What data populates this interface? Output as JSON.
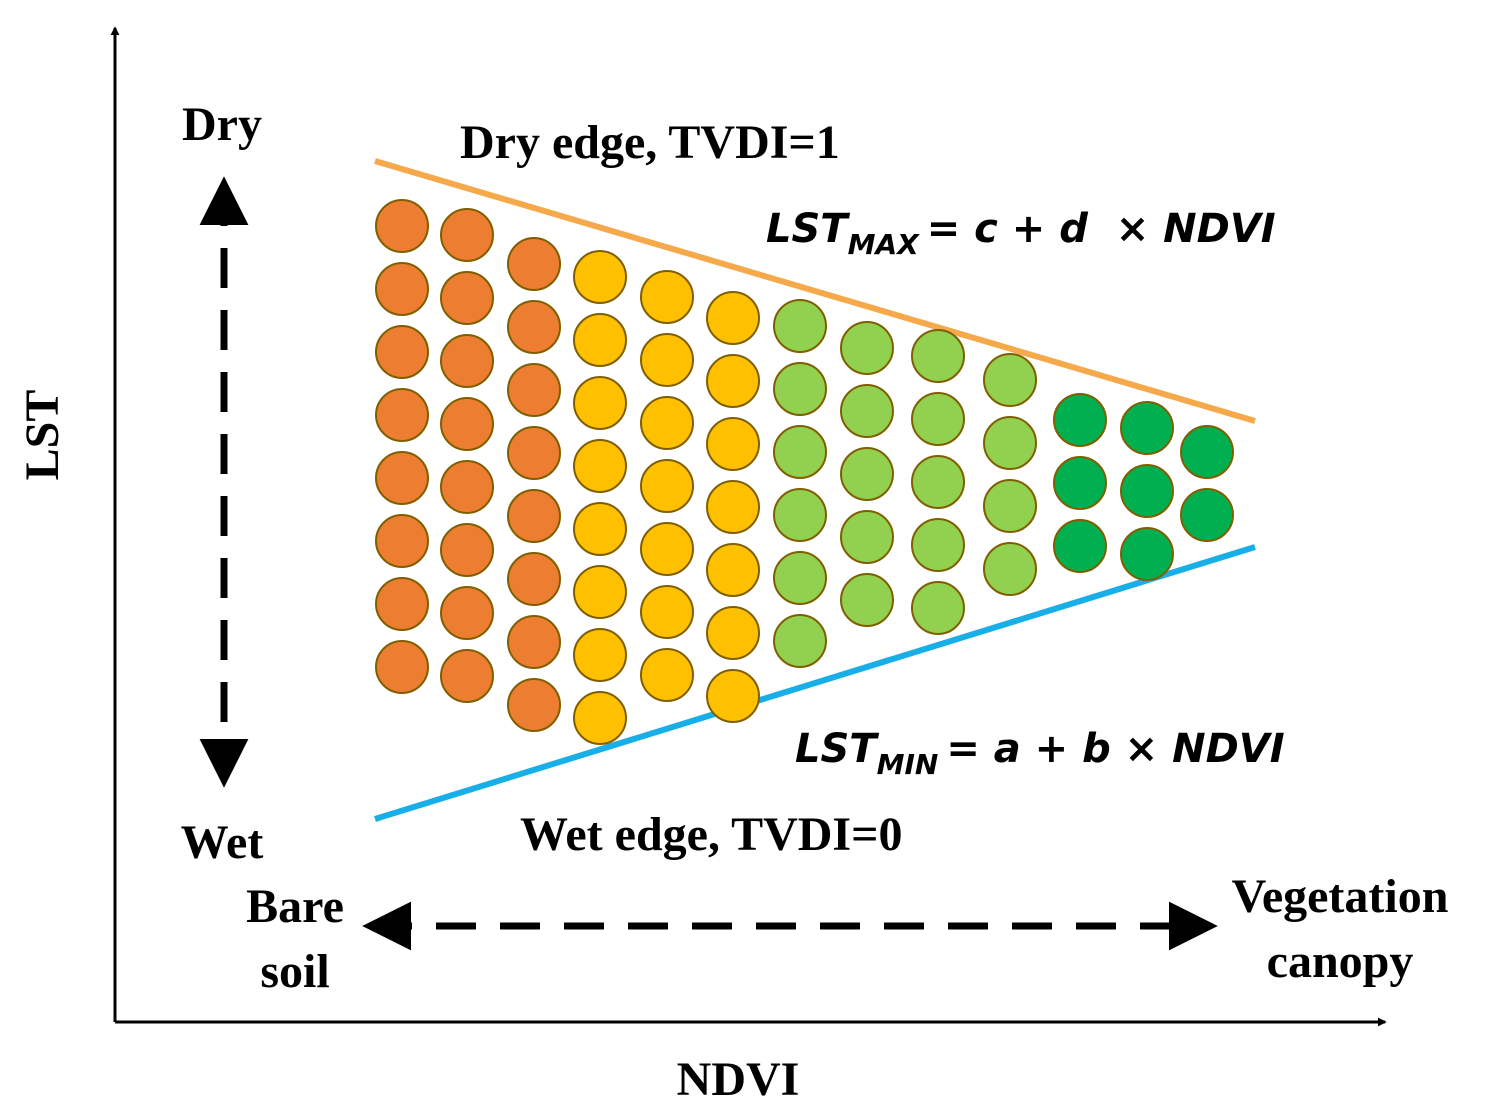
{
  "axes": {
    "x_label": "NDVI",
    "y_label": "LST"
  },
  "moisture": {
    "top": "Dry",
    "bottom": "Wet"
  },
  "cover": {
    "left_line1": "Bare",
    "left_line2": "soil",
    "right_line1": "Vegetation",
    "right_line2": "canopy"
  },
  "dry_edge": {
    "label": "Dry edge, TVDI=1",
    "color": "#F5A94A",
    "eq_lhs": "LST",
    "eq_sub": "MAX",
    "eq_rhs": "= c + d  × NDVI"
  },
  "wet_edge": {
    "label": "Wet edge, TVDI=0",
    "color": "#18AEE8",
    "eq_lhs": "LST",
    "eq_sub": "MIN",
    "eq_rhs": "= a + b × NDVI"
  },
  "point_colors": {
    "bare": "#ED7D31",
    "transition": "#FFC000",
    "sparse_vegetation": "#92D050",
    "dense_vegetation": "#00B050",
    "outline": "#7F5F00"
  },
  "point_columns": [
    {
      "class": "bare",
      "count": 8
    },
    {
      "class": "bare",
      "count": 8
    },
    {
      "class": "bare",
      "count": 8
    },
    {
      "class": "transition",
      "count": 8
    },
    {
      "class": "transition",
      "count": 7
    },
    {
      "class": "transition",
      "count": 7
    },
    {
      "class": "sparse_vegetation",
      "count": 6
    },
    {
      "class": "sparse_vegetation",
      "count": 5
    },
    {
      "class": "sparse_vegetation",
      "count": 5
    },
    {
      "class": "sparse_vegetation",
      "count": 4
    },
    {
      "class": "dense_vegetation",
      "count": 3
    },
    {
      "class": "dense_vegetation",
      "count": 3
    },
    {
      "class": "dense_vegetation",
      "count": 2
    }
  ]
}
